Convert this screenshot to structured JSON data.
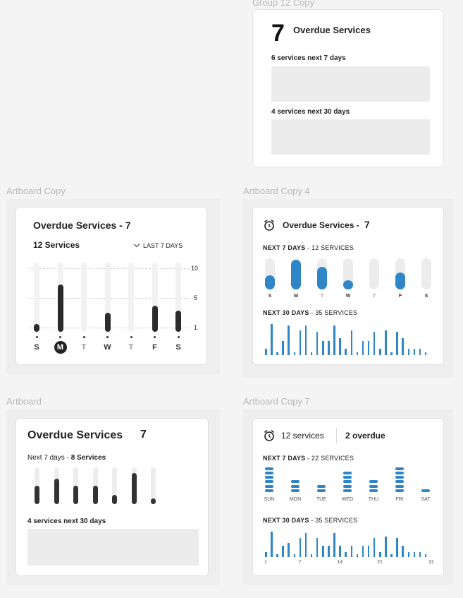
{
  "labels": {
    "group12": "Group 12 Copy",
    "artboard_copy": "Artboard Copy",
    "artboard_copy4": "Artboard Copy 4",
    "artboard": "Artboard",
    "artboard_copy7": "Artboard Copy 7"
  },
  "card_group12": {
    "count": "7",
    "title": "Overdue Services",
    "next7": "6 services next 7 days",
    "next30": "4 services next 30 days"
  },
  "card_copy": {
    "title": "Overdue Services - 7",
    "subtitle": "12 Services",
    "range": "LAST 7 DAYS",
    "y_ticks": [
      "10",
      "5",
      "1"
    ],
    "days": [
      "S",
      "M",
      "T",
      "W",
      "T",
      "F",
      "S"
    ],
    "values": [
      1.5,
      7.5,
      0,
      3.2,
      0,
      4.3,
      3.6
    ],
    "selected_day": 1
  },
  "card_copy4": {
    "title": "Overdue Services -",
    "count": "7",
    "next7_label": "NEXT 7 DAYS",
    "next7_value": " - 12 SERVICES",
    "days": [
      "S",
      "M",
      "T",
      "W",
      "T",
      "F",
      "S"
    ],
    "levels": [
      0.45,
      0.95,
      0.72,
      0.3,
      0,
      0.55,
      0
    ],
    "next30_label": "NEXT 30 DAYS",
    "next30_value": " - 35 SERVICES",
    "bars30": [
      0.2,
      1.0,
      0.1,
      0.45,
      0.95,
      0.1,
      0.8,
      0.95,
      0.1,
      0.75,
      0.45,
      0.45,
      0.95,
      0.55,
      0.2,
      0.8,
      0.1,
      0.45,
      0.45,
      0.75,
      0.2,
      0.8,
      0.1,
      0.75,
      0.55,
      0.2,
      0.2,
      0.2,
      0.1
    ]
  },
  "card_artboard": {
    "title": "Overdue Services",
    "count": "7",
    "next7_prefix": "Next 7 days - ",
    "next7_value": "8 Services",
    "values": [
      0.5,
      0.7,
      0.5,
      0.5,
      0.25,
      0.85,
      0.15
    ],
    "next30": "4 services next 30 days"
  },
  "card_copy7": {
    "services": "12 services",
    "overdue": "2 overdue",
    "next7_label": "NEXT 7 DAYS",
    "next7_value": " - 22 SERVICES",
    "days": [
      "SUN",
      "MON",
      "TUE",
      "WED",
      "THU",
      "FRI",
      "SAT"
    ],
    "stacks": [
      6,
      3,
      2,
      5,
      3,
      6,
      1
    ],
    "next30_label": "NEXT 30 DAYS",
    "next30_value": " - 35 SERVICES",
    "bars30": [
      0.2,
      1.0,
      0.1,
      0.45,
      0.55,
      0.1,
      0.75,
      0.95,
      0.1,
      0.75,
      0.45,
      0.45,
      0.95,
      0.45,
      0.2,
      0.45,
      0.1,
      0.45,
      0.45,
      0.75,
      0.2,
      0.8,
      0.1,
      0.75,
      0.45,
      0.2,
      0.2,
      0.2,
      0.1
    ],
    "x_ticks": [
      "1",
      "7",
      "14",
      "21",
      "31"
    ]
  },
  "colors": {
    "accent_blue": "#2f86c6",
    "dark_bar": "#2b2b2b",
    "track": "#f0f0f0"
  }
}
